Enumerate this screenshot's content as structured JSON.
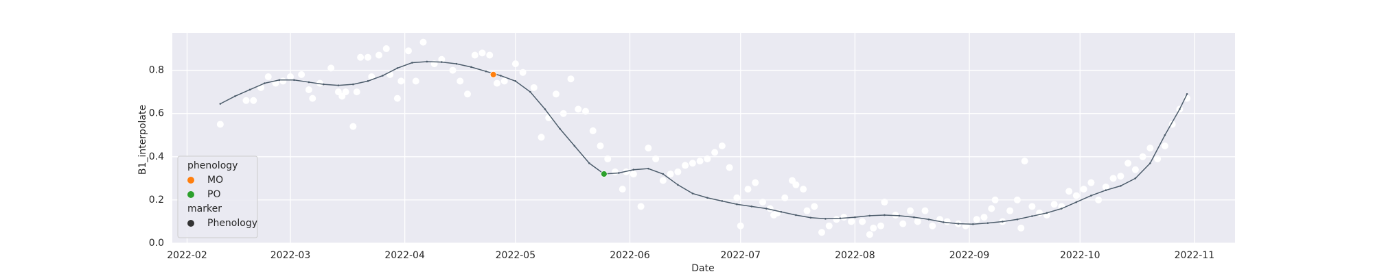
{
  "chart_data": {
    "type": "scatter",
    "xlabel": "Date",
    "ylabel": "B1_interpolate",
    "xlim": [
      28,
      316
    ],
    "ylim": [
      0,
      0.973
    ],
    "xticks": [
      {
        "value": 32,
        "label": "2022-02"
      },
      {
        "value": 60,
        "label": "2022-03"
      },
      {
        "value": 91,
        "label": "2022-04"
      },
      {
        "value": 121,
        "label": "2022-05"
      },
      {
        "value": 152,
        "label": "2022-06"
      },
      {
        "value": 182,
        "label": "2022-07"
      },
      {
        "value": 213,
        "label": "2022-08"
      },
      {
        "value": 244,
        "label": "2022-09"
      },
      {
        "value": 274,
        "label": "2022-10"
      },
      {
        "value": 305,
        "label": "2022-11"
      }
    ],
    "yticks": [
      {
        "value": 0,
        "label": "0.0"
      },
      0.2,
      0.4,
      0.6,
      0.8
    ],
    "grid": true,
    "background": "#eaeaf2",
    "series": [
      {
        "kind": "scatter",
        "color": "#ffffff",
        "x": [
          41,
          48,
          50,
          52,
          54,
          56,
          58,
          60,
          63,
          65,
          66,
          68,
          71,
          73,
          74,
          75,
          77,
          78,
          79,
          81,
          82,
          84,
          86,
          87,
          89,
          90,
          92,
          94,
          96,
          99,
          101,
          104,
          106,
          108,
          110,
          112,
          114,
          116,
          118,
          121,
          123,
          126,
          128,
          130,
          132,
          134,
          136,
          138,
          140,
          142,
          144,
          146,
          148,
          150,
          151,
          153,
          155,
          157,
          159,
          161,
          163,
          165,
          167,
          169,
          171,
          173,
          175,
          177,
          179,
          181,
          182,
          184,
          186,
          188,
          190,
          191,
          192,
          194,
          196,
          197,
          199,
          200,
          202,
          204,
          206,
          208,
          210,
          212,
          215,
          217,
          218,
          220,
          221,
          224,
          226,
          228,
          230,
          232,
          234,
          236,
          238,
          241,
          243,
          246,
          248,
          250,
          251,
          253,
          255,
          257,
          258,
          259,
          261,
          263,
          265,
          267,
          269,
          271,
          273,
          275,
          277,
          279,
          281,
          283,
          285,
          287,
          289,
          291,
          293,
          295,
          297,
          299,
          301,
          303
        ],
        "values": [
          0.55,
          0.66,
          0.66,
          0.72,
          0.77,
          0.74,
          0.75,
          0.77,
          0.78,
          0.71,
          0.67,
          0.74,
          0.81,
          0.7,
          0.68,
          0.7,
          0.54,
          0.7,
          0.86,
          0.86,
          0.77,
          0.87,
          0.9,
          0.78,
          0.67,
          0.75,
          0.89,
          0.75,
          0.93,
          0.83,
          0.85,
          0.8,
          0.75,
          0.69,
          0.87,
          0.88,
          0.87,
          0.74,
          0.75,
          0.83,
          0.79,
          0.72,
          0.49,
          0.58,
          0.69,
          0.6,
          0.76,
          0.62,
          0.61,
          0.52,
          0.45,
          0.39,
          0.33,
          0.25,
          0.33,
          0.32,
          0.17,
          0.44,
          0.39,
          0.29,
          0.32,
          0.33,
          0.36,
          0.37,
          0.38,
          0.39,
          0.42,
          0.45,
          0.35,
          0.21,
          0.08,
          0.25,
          0.28,
          0.19,
          0.16,
          0.13,
          0.14,
          0.21,
          0.29,
          0.27,
          0.25,
          0.15,
          0.17,
          0.05,
          0.08,
          0.11,
          0.12,
          0.1,
          0.1,
          0.04,
          0.07,
          0.08,
          0.19,
          0.13,
          0.09,
          0.15,
          0.1,
          0.15,
          0.08,
          0.11,
          0.1,
          0.09,
          0.08,
          0.11,
          0.12,
          0.16,
          0.2,
          0.1,
          0.15,
          0.2,
          0.07,
          0.38,
          0.17,
          0.14,
          0.13,
          0.18,
          0.17,
          0.24,
          0.22,
          0.25,
          0.28,
          0.2,
          0.26,
          0.3,
          0.31,
          0.37,
          0.34,
          0.4,
          0.44,
          0.39,
          0.45,
          0.55,
          0.62,
          0.67
        ]
      },
      {
        "kind": "line",
        "color": "#4c5c6b",
        "x": [
          41,
          45,
          49,
          53,
          57,
          61,
          65,
          69,
          73,
          77,
          81,
          85,
          89,
          93,
          97,
          101,
          105,
          109,
          113,
          117,
          121,
          125,
          129,
          133,
          137,
          141,
          145,
          149,
          153,
          157,
          161,
          165,
          169,
          173,
          177,
          181,
          185,
          189,
          193,
          197,
          201,
          205,
          209,
          213,
          217,
          221,
          225,
          229,
          233,
          237,
          241,
          245,
          249,
          253,
          257,
          261,
          265,
          269,
          273,
          277,
          281,
          285,
          289,
          293,
          297,
          301,
          303
        ],
        "values": [
          0.645,
          0.68,
          0.71,
          0.74,
          0.755,
          0.755,
          0.745,
          0.735,
          0.73,
          0.735,
          0.75,
          0.775,
          0.81,
          0.835,
          0.84,
          0.838,
          0.83,
          0.815,
          0.795,
          0.775,
          0.75,
          0.7,
          0.62,
          0.53,
          0.45,
          0.37,
          0.32,
          0.325,
          0.34,
          0.345,
          0.32,
          0.27,
          0.23,
          0.21,
          0.195,
          0.18,
          0.17,
          0.16,
          0.145,
          0.13,
          0.118,
          0.113,
          0.115,
          0.12,
          0.127,
          0.13,
          0.127,
          0.12,
          0.11,
          0.097,
          0.09,
          0.088,
          0.093,
          0.1,
          0.11,
          0.125,
          0.14,
          0.16,
          0.19,
          0.22,
          0.245,
          0.265,
          0.3,
          0.37,
          0.5,
          0.62,
          0.69
        ]
      },
      {
        "kind": "scatter",
        "name": "MO",
        "color": "#ff7f0e",
        "x": [
          115
        ],
        "values": [
          0.78
        ]
      },
      {
        "kind": "scatter",
        "name": "PO",
        "color": "#2ca02c",
        "x": [
          145
        ],
        "values": [
          0.32
        ]
      }
    ],
    "legend": {
      "title": "phenology",
      "marker_title": "marker",
      "marker_label": "Phenology",
      "marker_color": "#333333",
      "corner": "lower left"
    }
  }
}
